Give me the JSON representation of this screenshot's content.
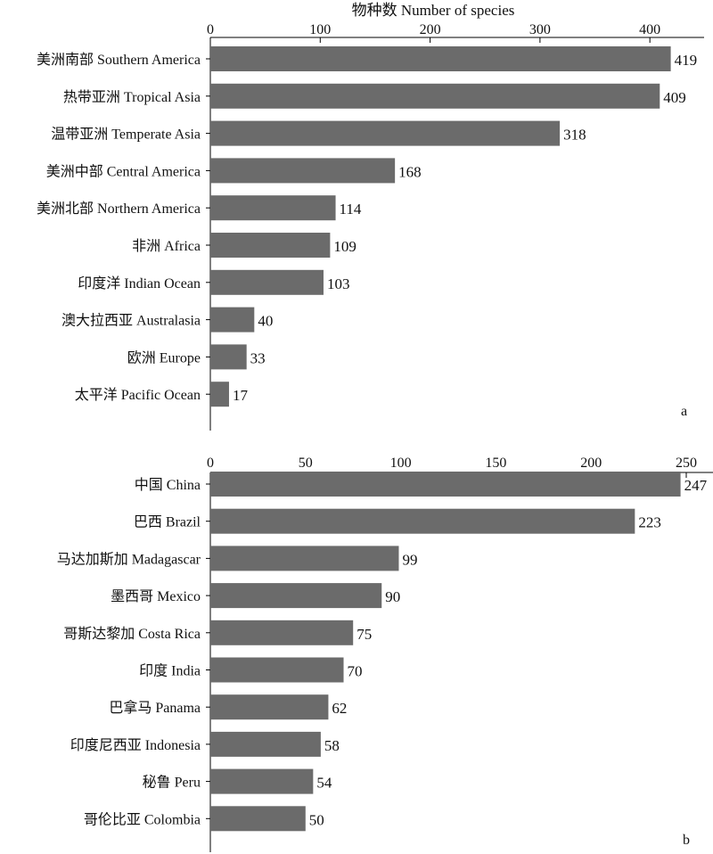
{
  "chart_data": [
    {
      "type": "bar",
      "orientation": "horizontal",
      "panel_label": "a",
      "x_axis_title": "物种数 Number of species",
      "xlim": [
        0,
        425
      ],
      "ticks": [
        "0",
        "100",
        "200",
        "300",
        "400"
      ],
      "categories": [
        "美洲南部 Southern America",
        "热带亚洲 Tropical Asia",
        "温带亚洲 Temperate Asia",
        "美洲中部 Central America",
        "美洲北部 Northern America",
        "非洲 Africa",
        "印度洋 Indian Ocean",
        "澳大拉西亚 Australasia",
        "欧洲 Europe",
        "太平洋 Pacific Ocean"
      ],
      "values": [
        419,
        409,
        318,
        168,
        114,
        109,
        103,
        40,
        33,
        17
      ],
      "value_labels": [
        "419",
        "409",
        "318",
        "168",
        "114",
        "109",
        "103",
        "40",
        "33",
        "17"
      ],
      "bar_color": "#6b6b6b"
    },
    {
      "type": "bar",
      "orientation": "horizontal",
      "panel_label": "b",
      "xlim": [
        0,
        250
      ],
      "ticks": [
        "0",
        "50",
        "100",
        "150",
        "200",
        "250"
      ],
      "categories": [
        "中国 China",
        "巴西 Brazil",
        "马达加斯加 Madagascar",
        "墨西哥 Mexico",
        "哥斯达黎加 Costa Rica",
        "印度 India",
        "巴拿马 Panama",
        "印度尼西亚 Indonesia",
        "秘鲁 Peru",
        "哥伦比亚 Colombia"
      ],
      "values": [
        247,
        223,
        99,
        90,
        75,
        70,
        62,
        58,
        54,
        50
      ],
      "value_labels": [
        "247",
        "223",
        "99",
        "90",
        "75",
        "70",
        "62",
        "58",
        "54",
        "50"
      ],
      "bar_color": "#6b6b6b"
    }
  ]
}
